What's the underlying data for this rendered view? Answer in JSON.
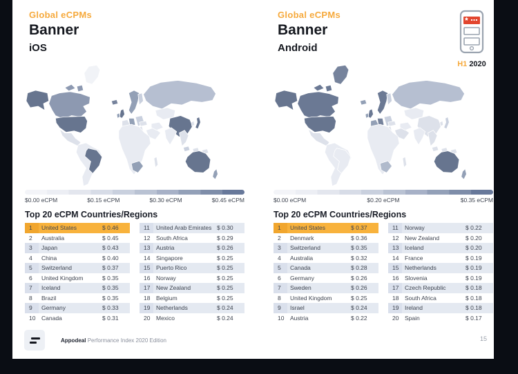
{
  "badge": {
    "h1": "H1",
    "year": "2020"
  },
  "footer": {
    "brand": "Appodeal",
    "text": "Performance Index 2020 Edition"
  },
  "page_number": "15",
  "colors": {
    "accent_orange": "#f6a93b",
    "row_highlight": "#f8b23c",
    "phone_banner_red": "#e2462f",
    "scale_dark": "#67758f",
    "scale_light": "#f1f3f7",
    "frame_background": "#0a0d14"
  },
  "panels": [
    {
      "eyebrow": "Global eCPMs",
      "title": "Banner",
      "platform": "iOS",
      "legend": [
        "$0.00 eCPM",
        "$0.15 eCPM",
        "$0.30 eCPM",
        "$0.45 eCPM"
      ],
      "table_title": "Top 20 eCPM Countries/Regions",
      "rows_left": [
        {
          "rank": "1",
          "country": "United States",
          "value": "$ 0.46",
          "hl": true
        },
        {
          "rank": "2",
          "country": "Australia",
          "value": "$ 0.45"
        },
        {
          "rank": "3",
          "country": "Japan",
          "value": "$ 0.43"
        },
        {
          "rank": "4",
          "country": "China",
          "value": "$ 0.40"
        },
        {
          "rank": "5",
          "country": "Switzerland",
          "value": "$ 0.37"
        },
        {
          "rank": "6",
          "country": "United Kingdom",
          "value": "$ 0.35"
        },
        {
          "rank": "7",
          "country": "Iceland",
          "value": "$ 0.35"
        },
        {
          "rank": "8",
          "country": "Brazil",
          "value": "$ 0.35"
        },
        {
          "rank": "9",
          "country": "Germany",
          "value": "$ 0.33"
        },
        {
          "rank": "10",
          "country": "Canada",
          "value": "$ 0.31"
        }
      ],
      "rows_right": [
        {
          "rank": "11",
          "country": "United Arab Emirates",
          "value": "$ 0.30"
        },
        {
          "rank": "12",
          "country": "South Africa",
          "value": "$ 0.29"
        },
        {
          "rank": "13",
          "country": "Austria",
          "value": "$ 0.26"
        },
        {
          "rank": "14",
          "country": "Singapore",
          "value": "$ 0.25"
        },
        {
          "rank": "15",
          "country": "Puerto Rico",
          "value": "$ 0.25"
        },
        {
          "rank": "16",
          "country": "Norway",
          "value": "$ 0.25"
        },
        {
          "rank": "17",
          "country": "New Zealand",
          "value": "$ 0.25"
        },
        {
          "rank": "18",
          "country": "Belgium",
          "value": "$ 0.25"
        },
        {
          "rank": "19",
          "country": "Netherlands",
          "value": "$ 0.24"
        },
        {
          "rank": "20",
          "country": "Mexico",
          "value": "$ 0.24"
        }
      ]
    },
    {
      "eyebrow": "Global eCPMs",
      "title": "Banner",
      "platform": "Android",
      "legend": [
        "$0.00 eCPM",
        "$0.20 eCPM",
        "$0.35 eCPM"
      ],
      "table_title": "Top 20 eCPM Countries/Regions",
      "rows_left": [
        {
          "rank": "1",
          "country": "United States",
          "value": "$ 0.37",
          "hl": true
        },
        {
          "rank": "2",
          "country": "Denmark",
          "value": "$ 0.36"
        },
        {
          "rank": "3",
          "country": "Switzerland",
          "value": "$ 0.35"
        },
        {
          "rank": "4",
          "country": "Australia",
          "value": "$ 0.32"
        },
        {
          "rank": "5",
          "country": "Canada",
          "value": "$ 0.28"
        },
        {
          "rank": "6",
          "country": "Germany",
          "value": "$ 0.26"
        },
        {
          "rank": "7",
          "country": "Sweden",
          "value": "$ 0.26"
        },
        {
          "rank": "8",
          "country": "United Kingdom",
          "value": "$ 0.25"
        },
        {
          "rank": "9",
          "country": "Israel",
          "value": "$ 0.24"
        },
        {
          "rank": "10",
          "country": "Austria",
          "value": "$ 0.22"
        }
      ],
      "rows_right": [
        {
          "rank": "11",
          "country": "Norway",
          "value": "$ 0.22"
        },
        {
          "rank": "12",
          "country": "New Zealand",
          "value": "$ 0.20"
        },
        {
          "rank": "13",
          "country": "Iceland",
          "value": "$ 0.20"
        },
        {
          "rank": "14",
          "country": "France",
          "value": "$ 0.19"
        },
        {
          "rank": "15",
          "country": "Netherlands",
          "value": "$ 0.19"
        },
        {
          "rank": "16",
          "country": "Slovenia",
          "value": "$ 0.19"
        },
        {
          "rank": "17",
          "country": "Czech Republic",
          "value": "$ 0.18"
        },
        {
          "rank": "18",
          "country": "South Africa",
          "value": "$ 0.18"
        },
        {
          "rank": "19",
          "country": "Ireland",
          "value": "$ 0.18"
        },
        {
          "rank": "20",
          "country": "Spain",
          "value": "$ 0.17"
        }
      ]
    }
  ],
  "maps": {
    "ios": {
      "greenland": "#f1f3f7",
      "alaska": "#67758f",
      "canada": "#8d99b1",
      "canisle1": "#8d99b1",
      "canisle2": "#8d99b1",
      "us": "#67758f",
      "mexico": "#dde1ea",
      "southamerica": "#e8ebf2",
      "brazil": "#67758f",
      "iceland": "#76839c",
      "uk": "#67758f",
      "ireland": "#93a0b6",
      "scandinavia": "#93a0b6",
      "finland": "#c9d0de",
      "france": "#dde1ea",
      "spain": "#dde1ea",
      "germany": "#93a0b6",
      "italy": "#c9d0de",
      "easteurope": "#c9d0de",
      "balkans": "#dde1ea",
      "russia": "#b6bfd1",
      "centralasia": "#e8ebf2",
      "china": "#67758f",
      "japan": "#67758f",
      "korea": "#dde1ea",
      "india": "#e8ebf2",
      "seasia": "#dde1ea",
      "saudi": "#e8ebf2",
      "turkey": "#dde1ea",
      "iran": "#e8ebf2",
      "africa": "#e8ebf2",
      "southafrica": "#93a0b6",
      "madagascar": "#dde1ea",
      "indo1": "#c9d0de",
      "indo2": "#dde1ea",
      "png": "#dde1ea",
      "australia": "#67758f",
      "nz": "#93a0b6"
    },
    "android": {
      "greenland": "#76839c",
      "alaska": "#67758f",
      "canada": "#6b7994",
      "canisle1": "#6b7994",
      "canisle2": "#6b7994",
      "us": "#67758f",
      "mexico": "#dde1ea",
      "southamerica": "#e8ebf2",
      "brazil": "#e8ebf2",
      "iceland": "#93a0b6",
      "uk": "#6b7994",
      "ireland": "#93a0b6",
      "scandinavia": "#6b7994",
      "finland": "#c9d0de",
      "france": "#93a0b6",
      "spain": "#c9d0de",
      "germany": "#76839c",
      "italy": "#c9d0de",
      "easteurope": "#c9d0de",
      "balkans": "#dde1ea",
      "russia": "#b6bfd1",
      "centralasia": "#e8ebf2",
      "china": "#dde1ea",
      "japan": "#c9d0de",
      "korea": "#dde1ea",
      "india": "#e8ebf2",
      "seasia": "#dde1ea",
      "saudi": "#dde1ea",
      "turkey": "#dde1ea",
      "iran": "#e8ebf2",
      "africa": "#e8ebf2",
      "southafrica": "#b0bacc",
      "madagascar": "#dde1ea",
      "indo1": "#dde1ea",
      "indo2": "#dde1ea",
      "png": "#dde1ea",
      "australia": "#67758f",
      "nz": "#93a0b6"
    }
  }
}
